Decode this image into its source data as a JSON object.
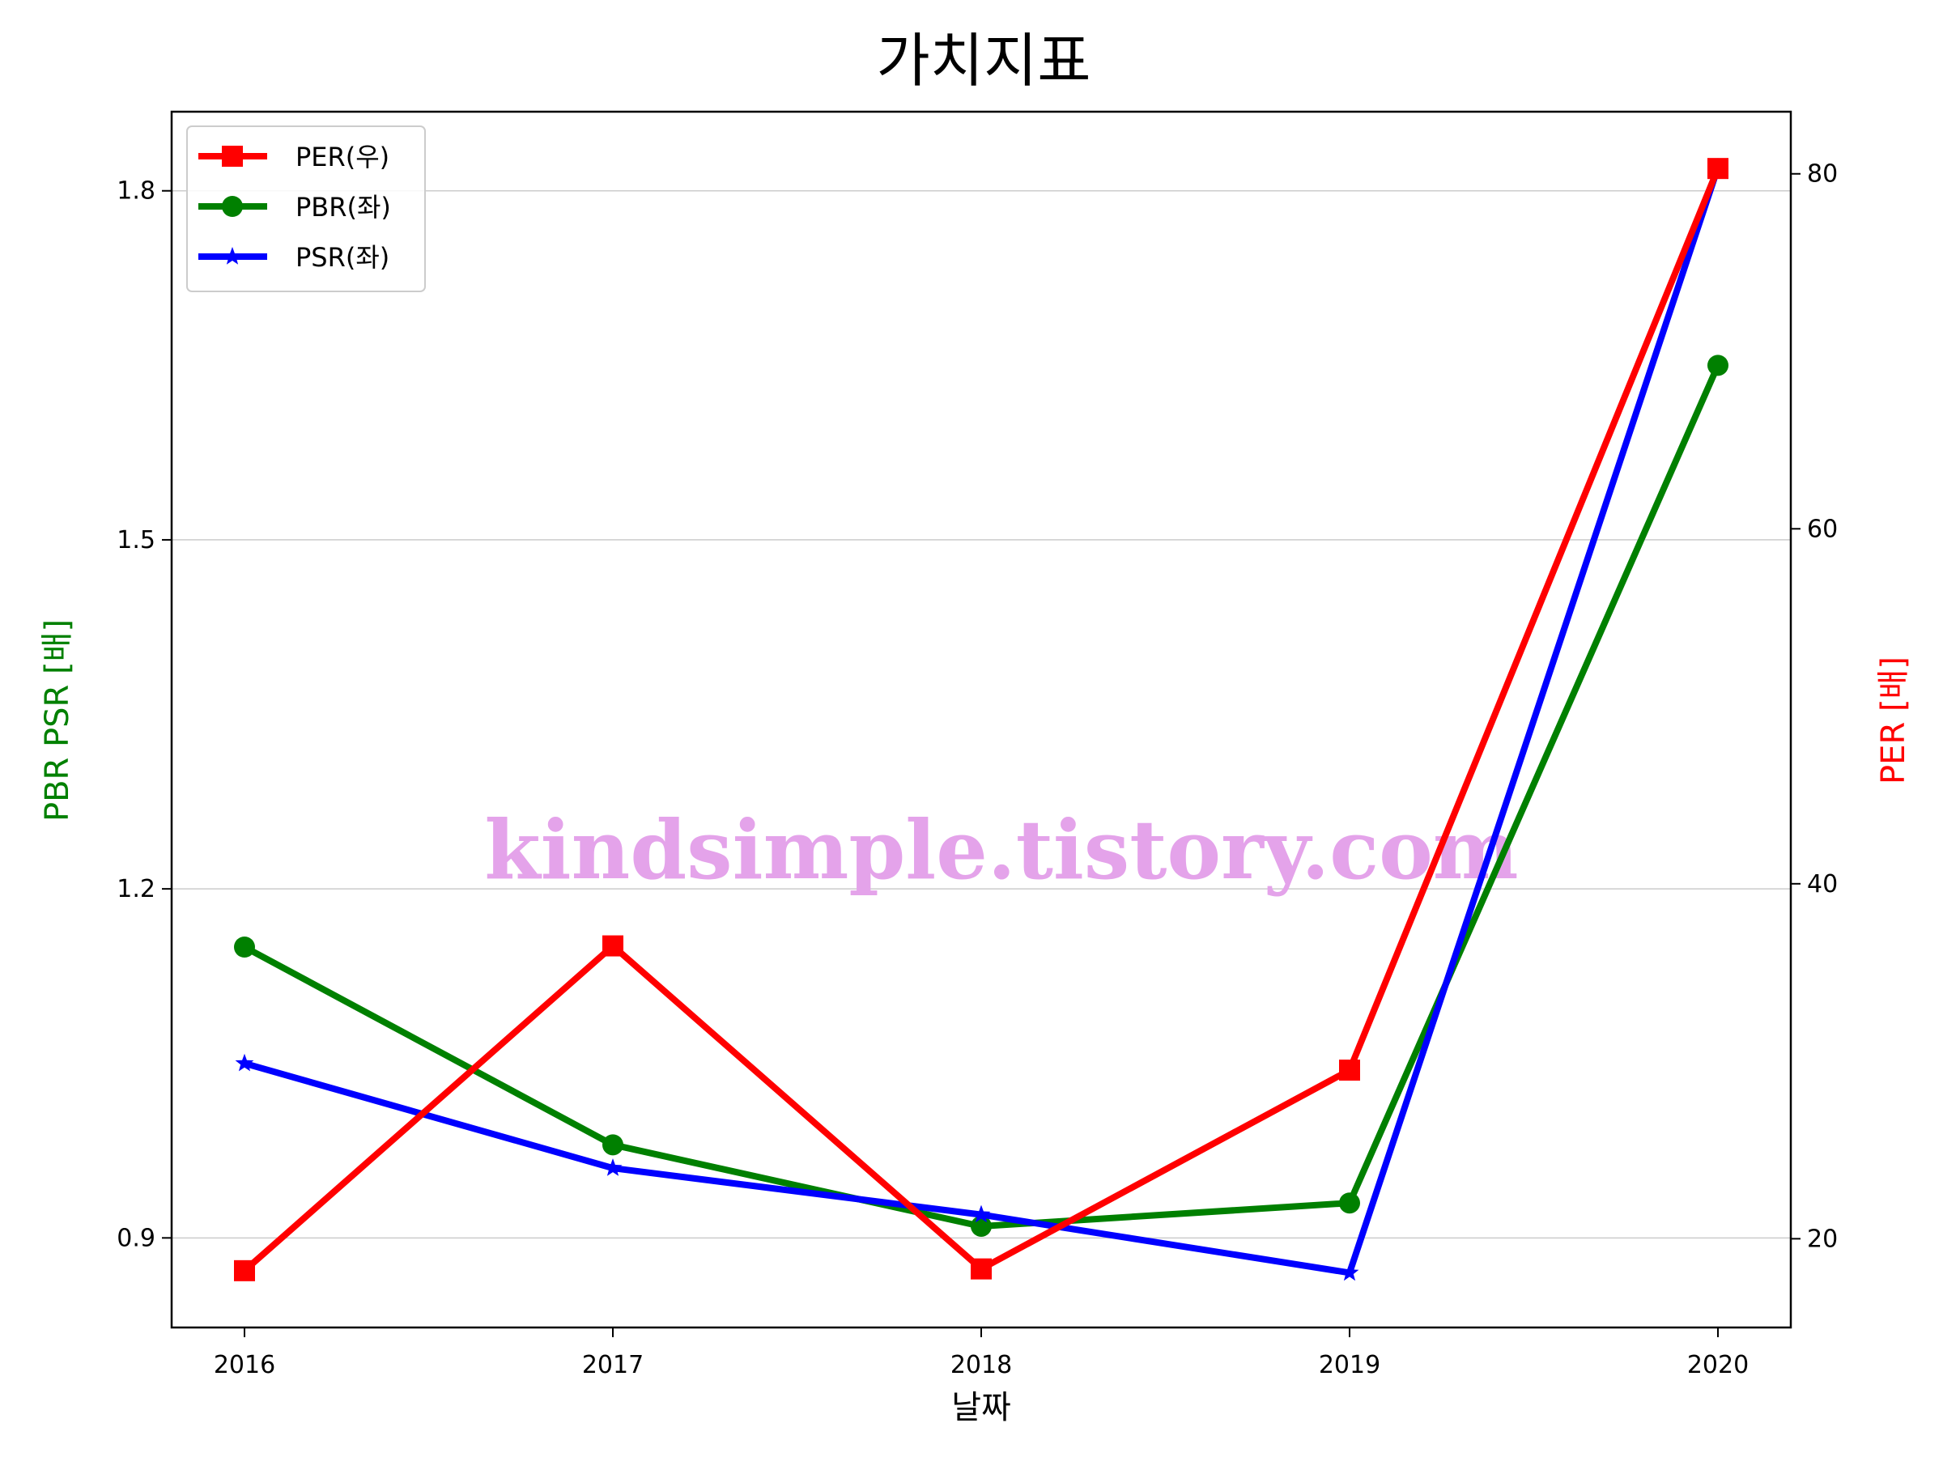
{
  "chart_data": {
    "type": "line",
    "title": "가치지표",
    "xlabel": "날짜",
    "ylabel_left": "PBR PSR [배]",
    "ylabel_right": "PER [배]",
    "categories": [
      "2016",
      "2017",
      "2018",
      "2019",
      "2020"
    ],
    "ylim_left": [
      0.823,
      1.868
    ],
    "yticks_left": [
      0.9,
      1.2,
      1.5,
      1.8
    ],
    "ylim_right": [
      15,
      83.5
    ],
    "yticks_right": [
      20,
      40,
      60,
      80
    ],
    "grid": true,
    "legend_position": "top-left",
    "series": [
      {
        "name": "PER(우)",
        "axis": "right",
        "color": "#ff0000",
        "marker": "square",
        "values": [
          18.2,
          36.5,
          18.3,
          29.5,
          80.3
        ]
      },
      {
        "name": "PBR(좌)",
        "axis": "left",
        "color": "#008000",
        "marker": "circle",
        "values": [
          1.15,
          0.98,
          0.91,
          0.93,
          1.65
        ]
      },
      {
        "name": "PSR(좌)",
        "axis": "left",
        "color": "#0000ff",
        "marker": "star",
        "values": [
          1.05,
          0.96,
          0.92,
          0.87,
          1.82
        ]
      }
    ],
    "watermark": "kindsimple.tistory.com"
  }
}
